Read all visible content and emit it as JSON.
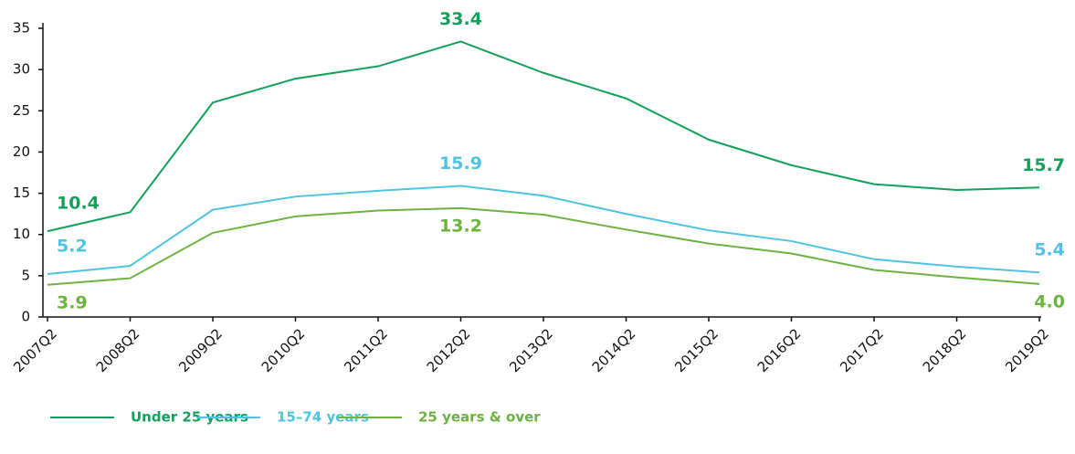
{
  "chart_data": {
    "type": "line",
    "categories": [
      "2007Q2",
      "2008Q2",
      "2009Q2",
      "2010Q2",
      "2011Q2",
      "2012Q2",
      "2013Q2",
      "2014Q2",
      "2015Q2",
      "2016Q2",
      "2017Q2",
      "2018Q2",
      "2019Q2"
    ],
    "series": [
      {
        "name": "Under 25 years",
        "color": "#12a05a",
        "values": [
          10.4,
          12.7,
          26.0,
          28.9,
          30.4,
          33.4,
          29.6,
          26.5,
          21.5,
          18.4,
          16.1,
          15.4,
          15.7
        ],
        "value_labels": [
          "10.4",
          null,
          null,
          null,
          null,
          "33.4",
          null,
          null,
          null,
          null,
          null,
          null,
          "15.7"
        ]
      },
      {
        "name": "15–74 years",
        "color": "#4fc3df",
        "values": [
          5.2,
          6.2,
          13.0,
          14.6,
          15.3,
          15.9,
          14.7,
          12.5,
          10.5,
          9.2,
          7.0,
          6.1,
          5.4
        ],
        "value_labels": [
          "5.2",
          null,
          null,
          null,
          null,
          "15.9",
          null,
          null,
          null,
          null,
          null,
          null,
          "5.4"
        ]
      },
      {
        "name": "25 years & over",
        "color": "#6cb33f",
        "values": [
          3.9,
          4.7,
          10.2,
          12.2,
          12.9,
          13.2,
          12.4,
          10.6,
          8.9,
          7.7,
          5.7,
          4.8,
          4.0
        ],
        "value_labels": [
          "3.9",
          null,
          null,
          null,
          null,
          "13.2",
          null,
          null,
          null,
          null,
          null,
          null,
          "4.0"
        ]
      }
    ],
    "ylim": [
      0,
      35
    ],
    "yticks": [
      0,
      5,
      10,
      15,
      20,
      25,
      30,
      35
    ],
    "legend": "bottom"
  }
}
